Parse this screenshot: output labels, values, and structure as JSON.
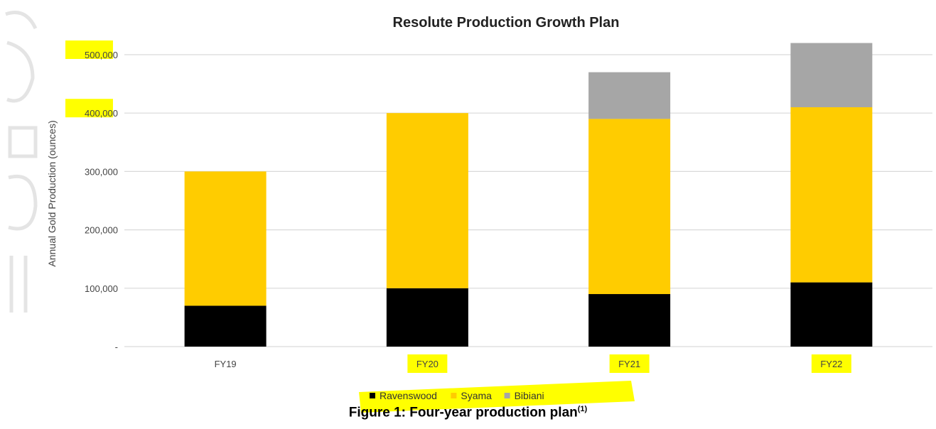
{
  "figure": {
    "caption": "Figure 1: Four-year production plan",
    "caption_superscript": "(1)"
  },
  "chart_data": {
    "type": "bar",
    "stacked": true,
    "title": "Resolute Production Growth Plan",
    "xlabel": "",
    "ylabel": "Annual Gold Production (ounces)",
    "categories": [
      "FY19",
      "FY20",
      "FY21",
      "FY22"
    ],
    "series": [
      {
        "name": "Ravenswood",
        "color": "#000000",
        "values": [
          70000,
          100000,
          90000,
          110000
        ]
      },
      {
        "name": "Syama",
        "color": "#FFCC00",
        "values": [
          230000,
          300000,
          300000,
          300000
        ]
      },
      {
        "name": "Bibiani",
        "color": "#A6A6A6",
        "values": [
          0,
          0,
          80000,
          110000
        ]
      }
    ],
    "ylim": [
      0,
      500000
    ],
    "yticks": [
      0,
      100000,
      200000,
      300000,
      400000,
      500000
    ],
    "ytick_labels": [
      "-",
      "100,000",
      "200,000",
      "300,000",
      "400,000",
      "500,000"
    ],
    "grid": true,
    "legend_position": "bottom",
    "highlight_color": "#FFFF00",
    "highlighted_ticks": [
      "500,000",
      "400,000",
      "FY20",
      "FY21",
      "FY22"
    ]
  }
}
